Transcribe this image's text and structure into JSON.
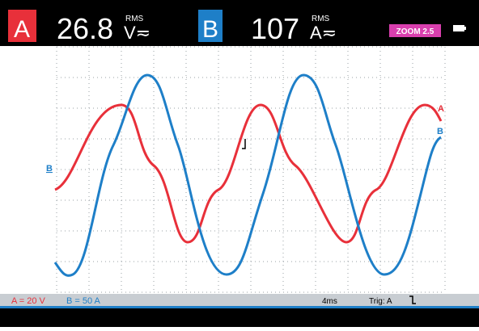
{
  "header": {
    "channel_a": {
      "label": "A",
      "reading": "26.8",
      "unit": "V≂",
      "mode": "RMS"
    },
    "channel_b": {
      "label": "B",
      "reading": "107",
      "unit": "A≂",
      "mode": "RMS"
    },
    "zoom": "ZOOM 2.5"
  },
  "traces": {
    "a_label": "A",
    "b_label": "B",
    "ground_marker": "B"
  },
  "status": {
    "scale_a": "A = 20 V",
    "scale_b": "B = 50 A",
    "timebase": "4ms",
    "trigger": "Trig: A"
  }
}
